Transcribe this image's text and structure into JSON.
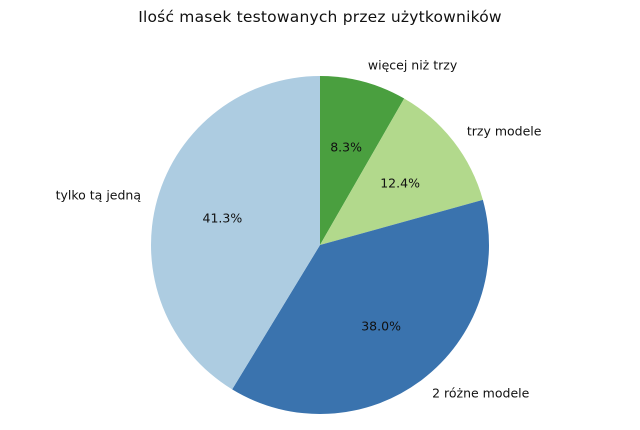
{
  "chart_data": {
    "type": "pie",
    "title": "Ilość masek testowanych przez użytkowników",
    "slices": [
      {
        "label": "więcej niż trzy",
        "value": 8.3,
        "pct_label": "8.3%",
        "color": "#4a9f3f"
      },
      {
        "label": "trzy modele",
        "value": 12.4,
        "pct_label": "12.4%",
        "color": "#b2d98c"
      },
      {
        "label": "2 różne modele",
        "value": 38.0,
        "pct_label": "38.0%",
        "color": "#3a73ae"
      },
      {
        "label": "tylko tą jedną",
        "value": 41.3,
        "pct_label": "41.3%",
        "color": "#adcce1"
      }
    ],
    "start_angle": "top",
    "direction": "clockwise",
    "label_distance": 1.1,
    "pct_distance": 0.6,
    "legend": "none",
    "background": "#ffffff",
    "text_color": "#111111"
  }
}
